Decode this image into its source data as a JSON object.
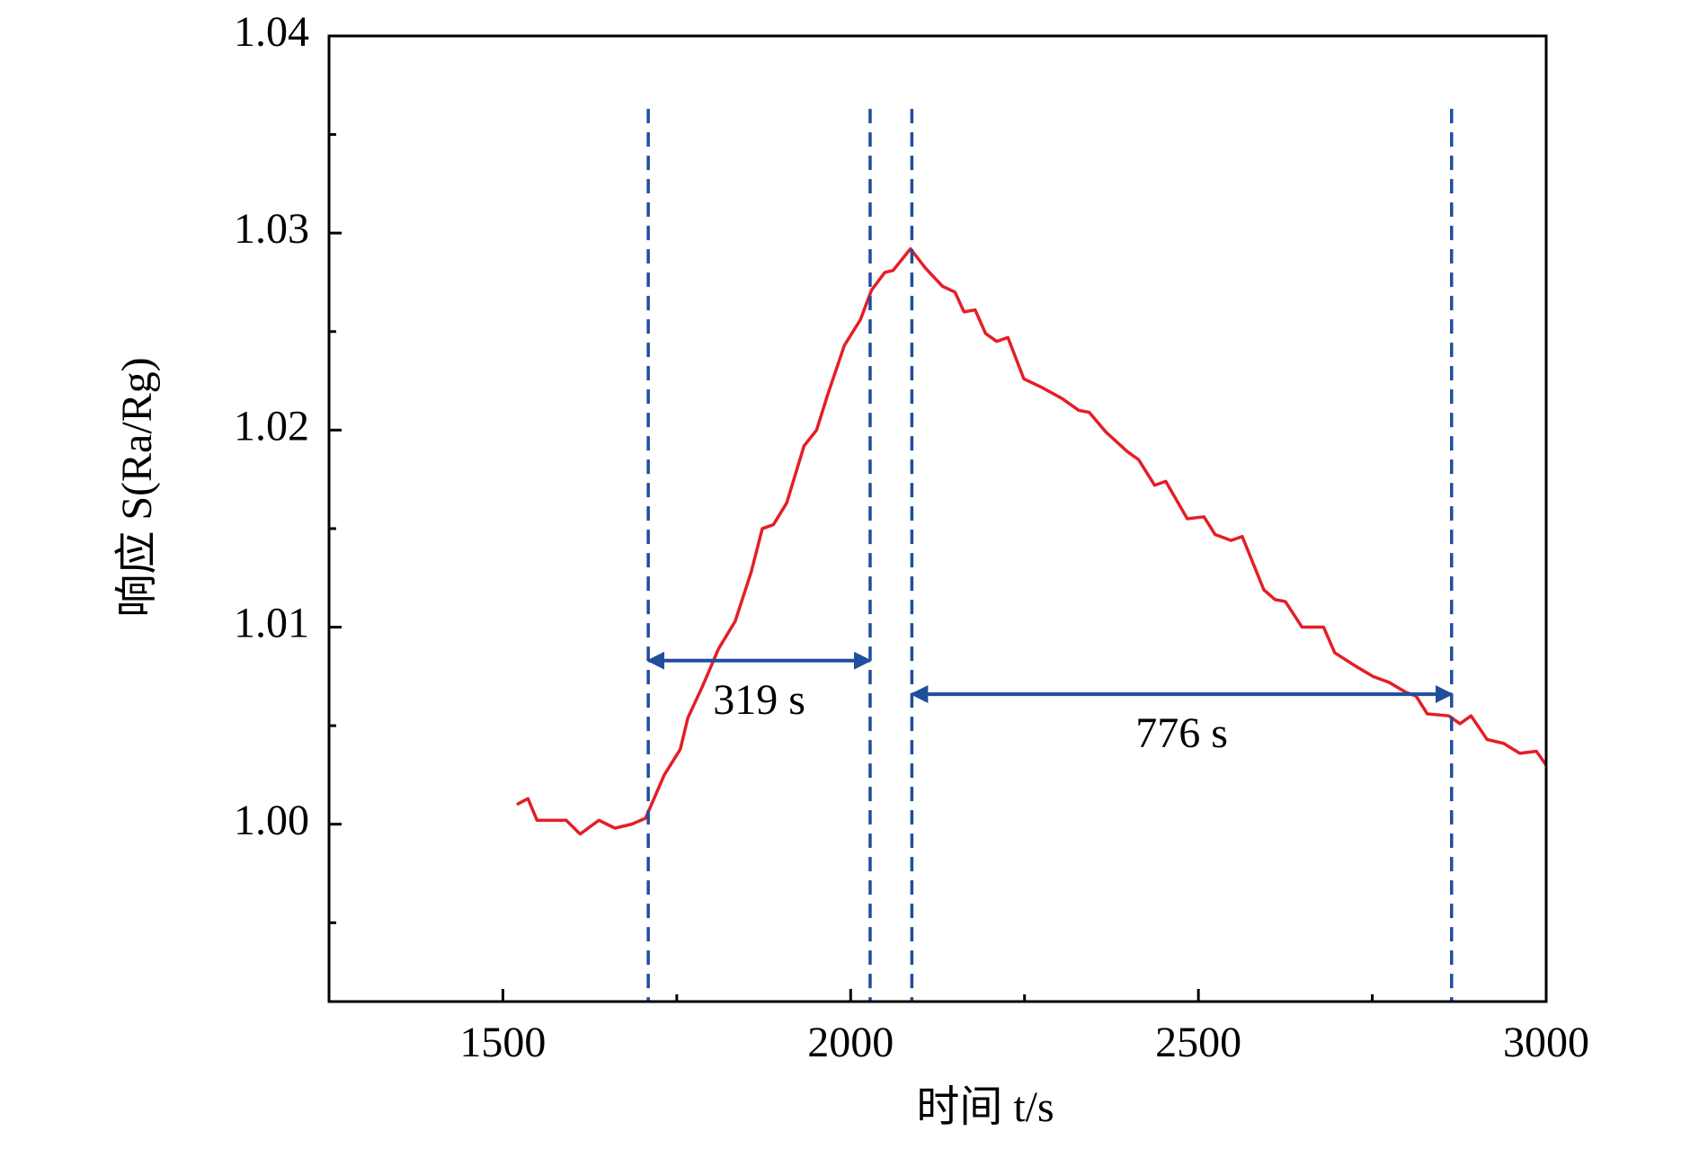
{
  "chart_data": {
    "type": "line",
    "xlabel": "时间 t/s",
    "ylabel": "响应 S(Ra/Rg)",
    "xlim": [
      1250,
      3000
    ],
    "xticks": [
      1500,
      2000,
      2500,
      3000
    ],
    "minor_xticks": [
      1750,
      2250,
      2750
    ],
    "ylim": [
      0.991,
      1.04
    ],
    "yticks": [
      {
        "value": 1,
        "label": "1.00"
      },
      1.01,
      1.02,
      1.03,
      1.04
    ],
    "minor_yticks": [
      0.995,
      1.005,
      1.015,
      1.025,
      1.035
    ],
    "series": [
      {
        "color": "#e41e26",
        "x": [
          1520,
          1536,
          1549,
          1567,
          1591,
          1611,
          1638,
          1661,
          1685,
          1705,
          1732,
          1755,
          1766,
          1787,
          1810,
          1834,
          1857,
          1873,
          1889,
          1908,
          1933,
          1951,
          1967,
          1991,
          2014,
          2030,
          2049,
          2061,
          2086,
          2108,
          2132,
          2150,
          2163,
          2179,
          2194,
          2210,
          2226,
          2249,
          2273,
          2304,
          2328,
          2343,
          2367,
          2398,
          2414,
          2437,
          2453,
          2484,
          2508,
          2524,
          2547,
          2563,
          2594,
          2610,
          2625,
          2649,
          2680,
          2696,
          2727,
          2751,
          2774,
          2798,
          2813,
          2829,
          2860,
          2876,
          2892,
          2915,
          2939,
          2962,
          2986,
          3000
        ],
        "values": [
          1.001,
          1.0013,
          1.0002,
          1.0002,
          1.0002,
          0.9995,
          1.0002,
          0.9998,
          1.0,
          1.0003,
          1.0025,
          1.0038,
          1.0054,
          1.007,
          1.0089,
          1.0103,
          1.0128,
          1.015,
          1.0152,
          1.0163,
          1.0192,
          1.02,
          1.0218,
          1.0243,
          1.0256,
          1.0271,
          1.028,
          1.0281,
          1.0292,
          1.0282,
          1.0273,
          1.027,
          1.026,
          1.0261,
          1.0249,
          1.0245,
          1.0247,
          1.0226,
          1.0222,
          1.0216,
          1.021,
          1.0209,
          1.0199,
          1.0189,
          1.0185,
          1.0172,
          1.0174,
          1.0155,
          1.0156,
          1.0147,
          1.0144,
          1.0146,
          1.0119,
          1.0114,
          1.0113,
          1.01,
          1.01,
          1.0087,
          1.008,
          1.0075,
          1.0072,
          1.0067,
          1.0065,
          1.0056,
          1.0055,
          1.0051,
          1.0055,
          1.0043,
          1.0041,
          1.0036,
          1.0037,
          1.003
        ]
      }
    ],
    "guide_color": "#1f4e9c",
    "vlines": [
      1709,
      2028,
      2088,
      2864
    ],
    "vline_top": 1.0363,
    "spans": [
      {
        "from": 1709,
        "to": 2028,
        "y": 1.0083,
        "label": "319 s"
      },
      {
        "from": 2088,
        "to": 2864,
        "y": 1.0066,
        "label": "776 s"
      }
    ]
  }
}
